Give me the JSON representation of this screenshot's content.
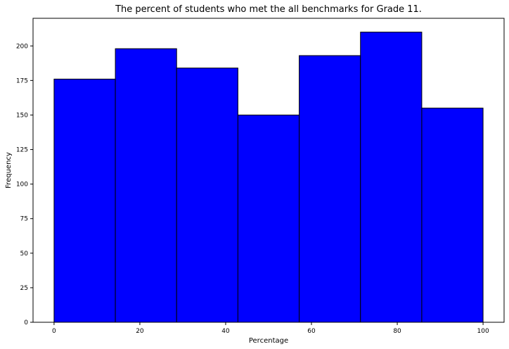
{
  "chart_data": {
    "type": "bar",
    "title": "The percent of students who met the all benchmarks for Grade 11.",
    "xlabel": "Percentage",
    "ylabel": "Frequency",
    "bin_edges": [
      0,
      14.2857,
      28.5714,
      42.8571,
      57.1429,
      71.4286,
      85.7143,
      100
    ],
    "values": [
      176,
      198,
      184,
      150,
      193,
      210,
      155
    ],
    "xlim": [
      -4.9,
      104.9
    ],
    "ylim": [
      0,
      220
    ],
    "xticks": [
      0,
      20,
      40,
      60,
      80,
      100
    ],
    "yticks": [
      0,
      25,
      50,
      75,
      100,
      125,
      150,
      175,
      200
    ],
    "grid": false,
    "bar_color": "#0000ff",
    "edge_color": "#000000"
  }
}
